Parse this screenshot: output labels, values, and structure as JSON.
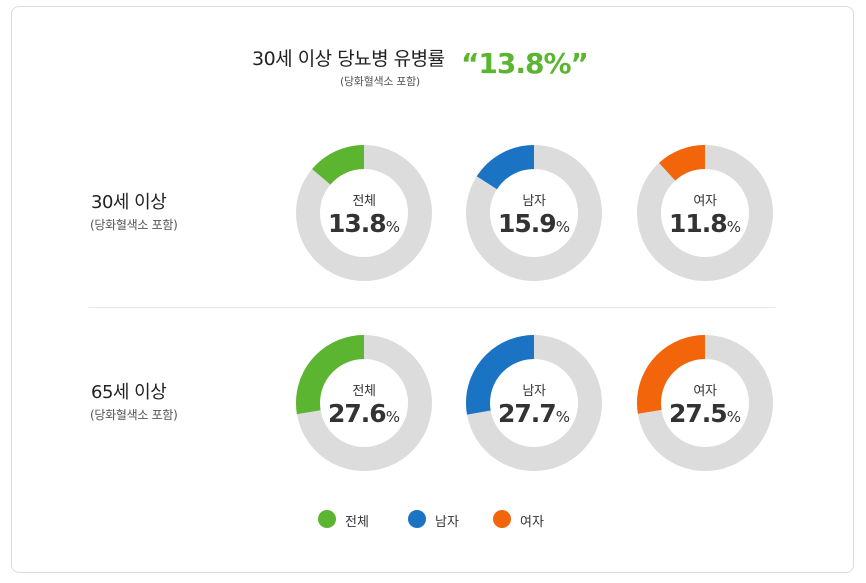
{
  "header": {
    "title": "30세 이상 당뇨병 유병률",
    "subtitle": "(당화혈색소 포함)",
    "value": "“13.8%”"
  },
  "colors": {
    "total": "#5bb530",
    "male": "#1b73c3",
    "female": "#f2650a",
    "track": "#dcdcdc"
  },
  "chart_data": {
    "type": "donut",
    "unit": "%",
    "series_names": [
      "전체",
      "남자",
      "여자"
    ],
    "rows": [
      {
        "label": "30세 이상",
        "sublabel": "(당화혈색소 포함)",
        "values": [
          {
            "name": "전체",
            "value": 13.8,
            "display": "13.8"
          },
          {
            "name": "남자",
            "value": 15.9,
            "display": "15.9"
          },
          {
            "name": "여자",
            "value": 11.8,
            "display": "11.8"
          }
        ]
      },
      {
        "label": "65세 이상",
        "sublabel": "(당화혈색소 포함)",
        "values": [
          {
            "name": "전체",
            "value": 27.6,
            "display": "27.6"
          },
          {
            "name": "남자",
            "value": 27.7,
            "display": "27.7"
          },
          {
            "name": "여자",
            "value": 27.5,
            "display": "27.5"
          }
        ]
      }
    ],
    "legend": [
      {
        "label": "전체",
        "color": "#5bb530"
      },
      {
        "label": "남자",
        "color": "#1b73c3"
      },
      {
        "label": "여자",
        "color": "#f2650a"
      }
    ],
    "legend_position": "bottom-center"
  }
}
